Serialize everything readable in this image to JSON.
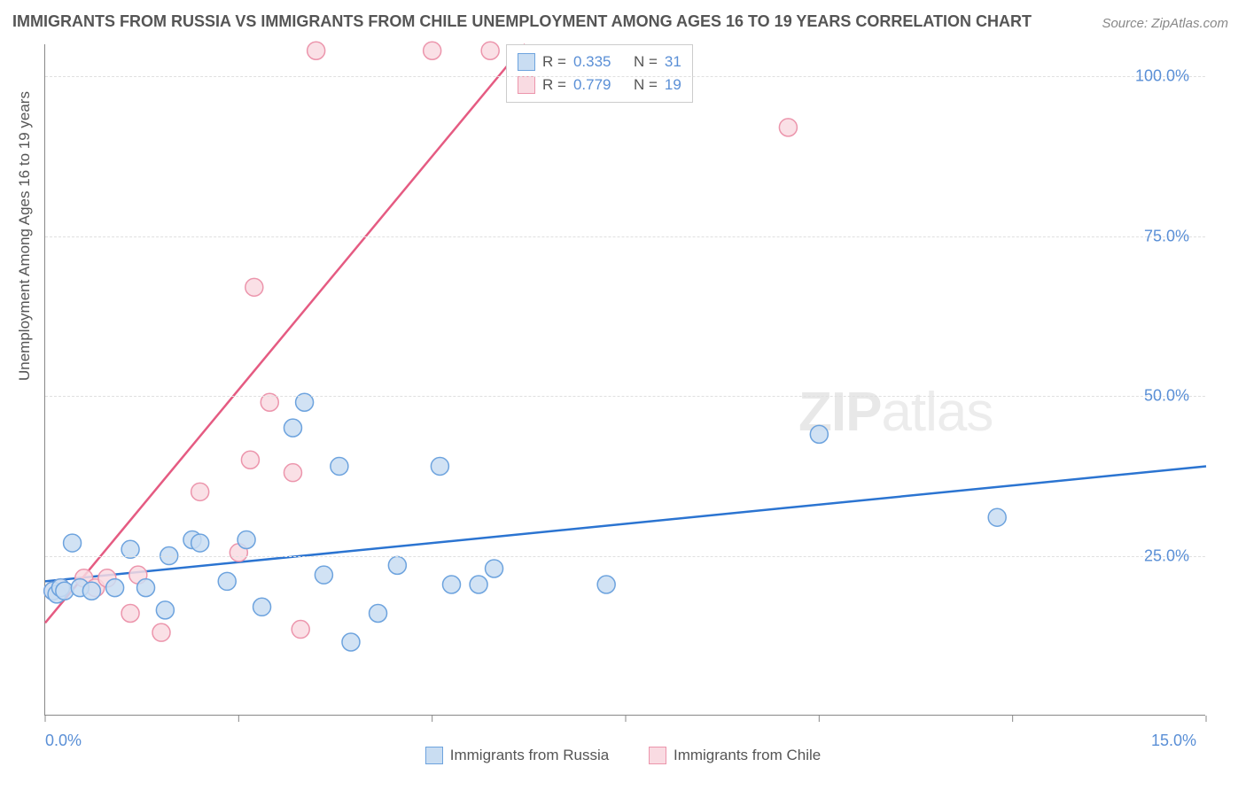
{
  "title": "IMMIGRANTS FROM RUSSIA VS IMMIGRANTS FROM CHILE UNEMPLOYMENT AMONG AGES 16 TO 19 YEARS CORRELATION CHART",
  "source": "Source: ZipAtlas.com",
  "watermark_bold": "ZIP",
  "watermark_thin": "atlas",
  "y_axis_label": "Unemployment Among Ages 16 to 19 years",
  "chart": {
    "type": "scatter",
    "background_color": "#ffffff",
    "grid_color": "#e0e0e0",
    "axis_color": "#888888",
    "xlim": [
      0.0,
      15.0
    ],
    "ylim": [
      0.0,
      105.0
    ],
    "yticks": [
      25.0,
      50.0,
      75.0,
      100.0
    ],
    "ytick_labels": [
      "25.0%",
      "50.0%",
      "75.0%",
      "100.0%"
    ],
    "xtick_left": "0.0%",
    "xtick_right": "15.0%",
    "marker_radius": 10,
    "marker_stroke_width": 1.5,
    "line_width": 2.5,
    "tick_label_color": "#5a8fd6",
    "tick_label_fontsize": 18,
    "series": [
      {
        "name": "Immigrants from Russia",
        "fill_color": "#c9ddf2",
        "stroke_color": "#6da3de",
        "line_color": "#2b74d1",
        "R": "0.335",
        "N": "31",
        "trend": {
          "x1": 0.0,
          "y1": 21.0,
          "x2": 15.0,
          "y2": 39.0
        },
        "points": [
          {
            "x": 0.1,
            "y": 19.5
          },
          {
            "x": 0.15,
            "y": 19.0
          },
          {
            "x": 0.2,
            "y": 20.0
          },
          {
            "x": 0.25,
            "y": 19.5
          },
          {
            "x": 0.35,
            "y": 27.0
          },
          {
            "x": 0.45,
            "y": 20.0
          },
          {
            "x": 0.6,
            "y": 19.5
          },
          {
            "x": 0.9,
            "y": 20.0
          },
          {
            "x": 1.1,
            "y": 26.0
          },
          {
            "x": 1.3,
            "y": 20.0
          },
          {
            "x": 1.55,
            "y": 16.5
          },
          {
            "x": 1.6,
            "y": 25.0
          },
          {
            "x": 1.9,
            "y": 27.5
          },
          {
            "x": 2.0,
            "y": 27.0
          },
          {
            "x": 2.35,
            "y": 21.0
          },
          {
            "x": 2.6,
            "y": 27.5
          },
          {
            "x": 2.8,
            "y": 17.0
          },
          {
            "x": 3.2,
            "y": 45.0
          },
          {
            "x": 3.35,
            "y": 49.0
          },
          {
            "x": 3.6,
            "y": 22.0
          },
          {
            "x": 3.8,
            "y": 39.0
          },
          {
            "x": 3.95,
            "y": 11.5
          },
          {
            "x": 4.3,
            "y": 16.0
          },
          {
            "x": 4.55,
            "y": 23.5
          },
          {
            "x": 5.1,
            "y": 39.0
          },
          {
            "x": 5.25,
            "y": 20.5
          },
          {
            "x": 5.6,
            "y": 20.5
          },
          {
            "x": 5.8,
            "y": 23.0
          },
          {
            "x": 7.25,
            "y": 20.5
          },
          {
            "x": 10.0,
            "y": 44.0
          },
          {
            "x": 12.3,
            "y": 31.0
          }
        ]
      },
      {
        "name": "Immigrants from Chile",
        "fill_color": "#f9dbe2",
        "stroke_color": "#ec95ac",
        "line_color": "#e55b82",
        "R": "0.779",
        "N": "19",
        "trend": {
          "x1": 0.0,
          "y1": 14.5,
          "x2": 6.2,
          "y2": 105.0
        },
        "points": [
          {
            "x": 0.1,
            "y": 19.5
          },
          {
            "x": 0.2,
            "y": 20.0
          },
          {
            "x": 0.5,
            "y": 21.5
          },
          {
            "x": 0.65,
            "y": 20.0
          },
          {
            "x": 0.8,
            "y": 21.5
          },
          {
            "x": 1.1,
            "y": 16.0
          },
          {
            "x": 1.2,
            "y": 22.0
          },
          {
            "x": 1.5,
            "y": 13.0
          },
          {
            "x": 2.0,
            "y": 35.0
          },
          {
            "x": 2.5,
            "y": 25.5
          },
          {
            "x": 2.65,
            "y": 40.0
          },
          {
            "x": 2.7,
            "y": 67.0
          },
          {
            "x": 2.9,
            "y": 49.0
          },
          {
            "x": 3.2,
            "y": 38.0
          },
          {
            "x": 3.3,
            "y": 13.5
          },
          {
            "x": 3.5,
            "y": 104.0
          },
          {
            "x": 5.0,
            "y": 104.0
          },
          {
            "x": 5.75,
            "y": 104.0
          },
          {
            "x": 9.6,
            "y": 92.0
          }
        ]
      }
    ]
  },
  "legend_top": {
    "r_label": "R =",
    "n_label": "N ="
  },
  "legend_bottom": {
    "items": [
      "Immigrants from Russia",
      "Immigrants from Chile"
    ]
  }
}
